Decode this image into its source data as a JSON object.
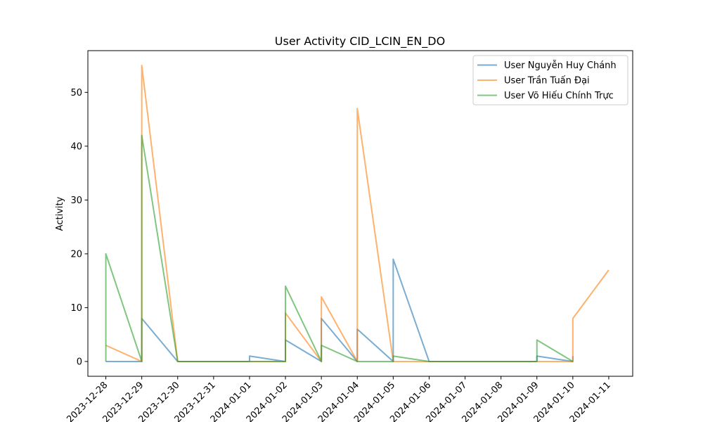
{
  "chart_data": {
    "type": "line",
    "title": "User Activity CID_LCIN_EN_DO",
    "xlabel": "",
    "ylabel": "Activity",
    "x_ticks": [
      "2023-12-28",
      "2023-12-29",
      "2023-12-30",
      "2023-12-31",
      "2024-01-01",
      "2024-01-02",
      "2024-01-03",
      "2024-01-04",
      "2024-01-05",
      "2024-01-06",
      "2024-01-07",
      "2024-01-08",
      "2024-01-09",
      "2024-01-10",
      "2024-01-11"
    ],
    "y_ticks": [
      0,
      10,
      20,
      30,
      40,
      50
    ],
    "xlim": [
      "2023-12-27 12:00",
      "2024-01-11 16:00"
    ],
    "ylim": [
      -2.75,
      57.75
    ],
    "grid": false,
    "legend_position": "top-right",
    "series": [
      {
        "name": "User Nguyễn Huy Chánh",
        "color": "#1f77b4",
        "points": [
          [
            "2023-12-28 00:00",
            0
          ],
          [
            "2023-12-29 00:00",
            0
          ],
          [
            "2023-12-29 00:00",
            8
          ],
          [
            "2023-12-30 00:00",
            0
          ],
          [
            "2024-01-01 00:00",
            0
          ],
          [
            "2024-01-01 00:00",
            1
          ],
          [
            "2024-01-02 00:00",
            0
          ],
          [
            "2024-01-02 00:00",
            4
          ],
          [
            "2024-01-03 00:00",
            0
          ],
          [
            "2024-01-03 00:00",
            8
          ],
          [
            "2024-01-04 00:00",
            0
          ],
          [
            "2024-01-04 00:00",
            6
          ],
          [
            "2024-01-05 00:00",
            0
          ],
          [
            "2024-01-05 00:00",
            19
          ],
          [
            "2024-01-06 00:00",
            0
          ],
          [
            "2024-01-09 00:00",
            0
          ],
          [
            "2024-01-09 00:00",
            1
          ],
          [
            "2024-01-10 00:00",
            0
          ],
          [
            "2024-01-10 00:00",
            1
          ]
        ]
      },
      {
        "name": "User Trần Tuấn Đại",
        "color": "#ff7f0e",
        "points": [
          [
            "2023-12-28 00:00",
            3
          ],
          [
            "2023-12-29 00:00",
            0
          ],
          [
            "2023-12-29 00:00",
            55
          ],
          [
            "2023-12-30 00:00",
            0
          ],
          [
            "2024-01-02 00:00",
            0
          ],
          [
            "2024-01-02 00:00",
            9
          ],
          [
            "2024-01-03 00:00",
            0
          ],
          [
            "2024-01-03 00:00",
            12
          ],
          [
            "2024-01-04 00:00",
            0
          ],
          [
            "2024-01-04 00:00",
            47
          ],
          [
            "2024-01-05 00:00",
            0
          ],
          [
            "2024-01-10 00:00",
            0
          ],
          [
            "2024-01-10 00:00",
            8
          ],
          [
            "2024-01-11 00:00",
            17
          ]
        ]
      },
      {
        "name": "User Võ Hiếu Chính Trực",
        "color": "#2ca02c",
        "points": [
          [
            "2023-12-28 00:00",
            0
          ],
          [
            "2023-12-28 00:00",
            20
          ],
          [
            "2023-12-29 00:00",
            0
          ],
          [
            "2023-12-29 00:00",
            42
          ],
          [
            "2023-12-30 00:00",
            0
          ],
          [
            "2024-01-02 00:00",
            0
          ],
          [
            "2024-01-02 00:00",
            14
          ],
          [
            "2024-01-03 00:00",
            0
          ],
          [
            "2024-01-03 00:00",
            3
          ],
          [
            "2024-01-04 00:00",
            0
          ],
          [
            "2024-01-05 00:00",
            0
          ],
          [
            "2024-01-05 00:00",
            1
          ],
          [
            "2024-01-06 00:00",
            0
          ],
          [
            "2024-01-09 00:00",
            0
          ],
          [
            "2024-01-09 00:00",
            4
          ],
          [
            "2024-01-10 00:00",
            0
          ]
        ]
      }
    ]
  }
}
